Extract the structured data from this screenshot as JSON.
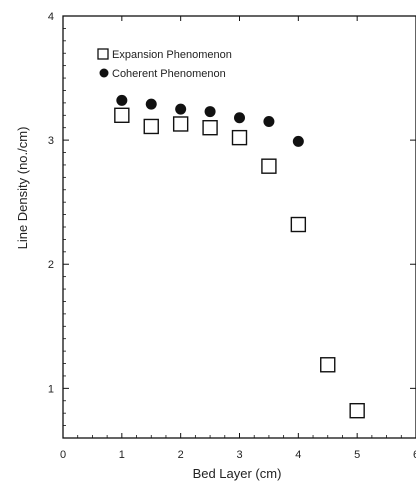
{
  "chart_data": {
    "type": "scatter",
    "xlabel": "Bed Layer (cm)",
    "ylabel": "Line Density (no./cm)",
    "xlim": [
      0,
      6
    ],
    "ylim": [
      0.6,
      4
    ],
    "x_ticks": [
      "0",
      "1",
      "2",
      "3",
      "4",
      "5",
      "6"
    ],
    "y_ticks": [
      "1",
      "2",
      "3",
      "4"
    ],
    "x_tick_values": [
      0,
      1,
      2,
      3,
      4,
      5,
      6
    ],
    "y_tick_values": [
      1,
      2,
      3,
      4
    ],
    "grid": false,
    "legend_position": "top-left",
    "series": [
      {
        "name": "Expansion Phenomenon",
        "marker": "open-square",
        "x": [
          1.0,
          1.5,
          2.0,
          2.5,
          3.0,
          3.5,
          4.0,
          4.5,
          5.0
        ],
        "y": [
          3.2,
          3.11,
          3.13,
          3.1,
          3.02,
          2.79,
          2.32,
          1.19,
          0.82
        ]
      },
      {
        "name": "Coherent Phenomenon",
        "marker": "filled-circle",
        "x": [
          1.0,
          1.5,
          2.0,
          2.5,
          3.0,
          3.5,
          4.0
        ],
        "y": [
          3.32,
          3.29,
          3.25,
          3.23,
          3.18,
          3.15,
          2.99
        ]
      }
    ]
  }
}
